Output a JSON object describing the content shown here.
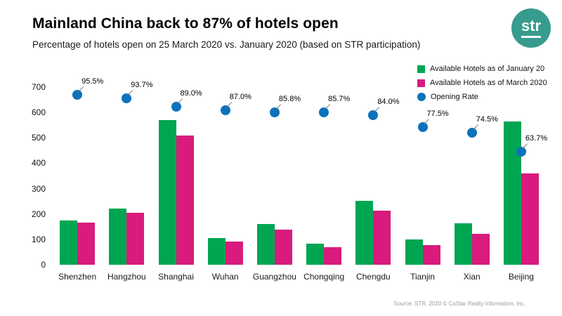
{
  "header": {
    "title": "Mainland China back to 87% of hotels open",
    "subtitle": "Percentage of hotels open on 25 March 2020 vs. January 2020 (based on STR participation)",
    "logo_text": "str",
    "logo_color": "#379C8D"
  },
  "legend": [
    {
      "label": "Available Hotels as of January 20",
      "color": "#00A651",
      "shape": "square"
    },
    {
      "label": "Available Hotels as of March 2020",
      "color": "#D81B7D",
      "shape": "square"
    },
    {
      "label": "Opening Rate",
      "color": "#0B72BC",
      "shape": "circle"
    }
  ],
  "chart_data": {
    "type": "bar",
    "subtype": "grouped bars with secondary-axis scatter (opening rate)",
    "title": "Mainland China back to 87% of hotels open",
    "xlabel": "",
    "ylabel": "",
    "ylim": [
      0,
      700
    ],
    "ytick_step": 100,
    "secondary_ylim": [
      0,
      100
    ],
    "grid": false,
    "legend_position": "top-right",
    "categories": [
      "Shenzhen",
      "Hangzhou",
      "Shanghai",
      "Wuhan",
      "Guangzhou",
      "Chongqing",
      "Chengdu",
      "Tianjin",
      "Xian",
      "Beijing"
    ],
    "series": [
      {
        "name": "Available Hotels as of January 20",
        "type": "bar",
        "color": "#00A651",
        "values": [
          175,
          220,
          570,
          105,
          160,
          82,
          253,
          100,
          163,
          565
        ]
      },
      {
        "name": "Available Hotels as of March 2020",
        "type": "bar",
        "color": "#D81B7D",
        "values": [
          167,
          205,
          508,
          92,
          137,
          70,
          213,
          77,
          121,
          360
        ]
      },
      {
        "name": "Opening Rate",
        "type": "scatter",
        "axis": "secondary",
        "color": "#0B72BC",
        "values_pct": [
          95.5,
          93.7,
          89.0,
          87.0,
          85.8,
          85.7,
          84.0,
          77.5,
          74.5,
          63.7
        ],
        "labels": [
          "95.5%",
          "93.7%",
          "89.0%",
          "87.0%",
          "85.8%",
          "85.7%",
          "84.0%",
          "77.5%",
          "74.5%",
          "63.7%"
        ]
      }
    ]
  },
  "footer": {
    "source": "Source: STR. 2020 © CoStar Realty Information, Inc."
  }
}
